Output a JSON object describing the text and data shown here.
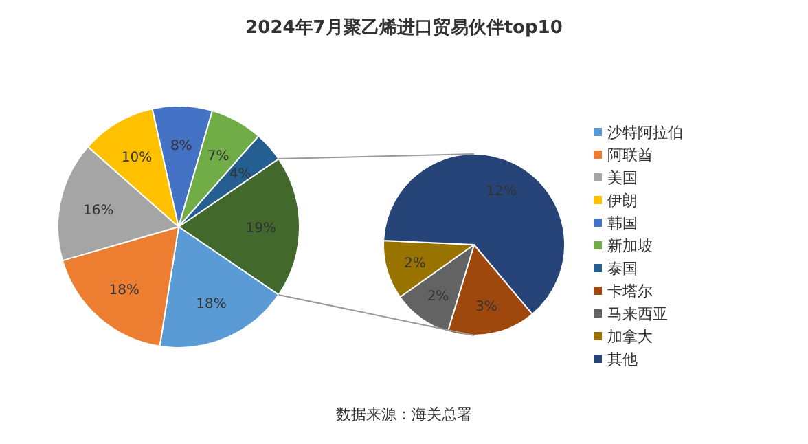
{
  "chart_data": [
    {
      "type": "pie",
      "title": "2024年7月聚乙烯进口贸易伙伴top10",
      "categories": [
        "沙特阿拉伯",
        "阿联酋",
        "美国",
        "伊朗",
        "韩国",
        "新加坡",
        "泰国",
        null
      ],
      "values": [
        18,
        18,
        16,
        10,
        8,
        7,
        4,
        19
      ],
      "colors": [
        "#5b9bd5",
        "#ed7d31",
        "#a5a5a5",
        "#ffc000",
        "#4472c4",
        "#70ad47",
        "#255e91",
        "#43682b"
      ],
      "value_labels": [
        "18%",
        "18%",
        "16%",
        "10%",
        "8%",
        "7%",
        "4%",
        "19%"
      ],
      "annotations": [
        "数据来源：海关总署"
      ]
    },
    {
      "type": "pie",
      "categories": [
        "卡塔尔",
        "马来西亚",
        "加拿大",
        "其他"
      ],
      "values": [
        3,
        2,
        2,
        12
      ],
      "colors": [
        "#9e480e",
        "#636363",
        "#997300",
        "#264478"
      ],
      "value_labels": [
        "3%",
        "2%",
        "2%",
        "12%"
      ],
      "legend": "right"
    }
  ]
}
